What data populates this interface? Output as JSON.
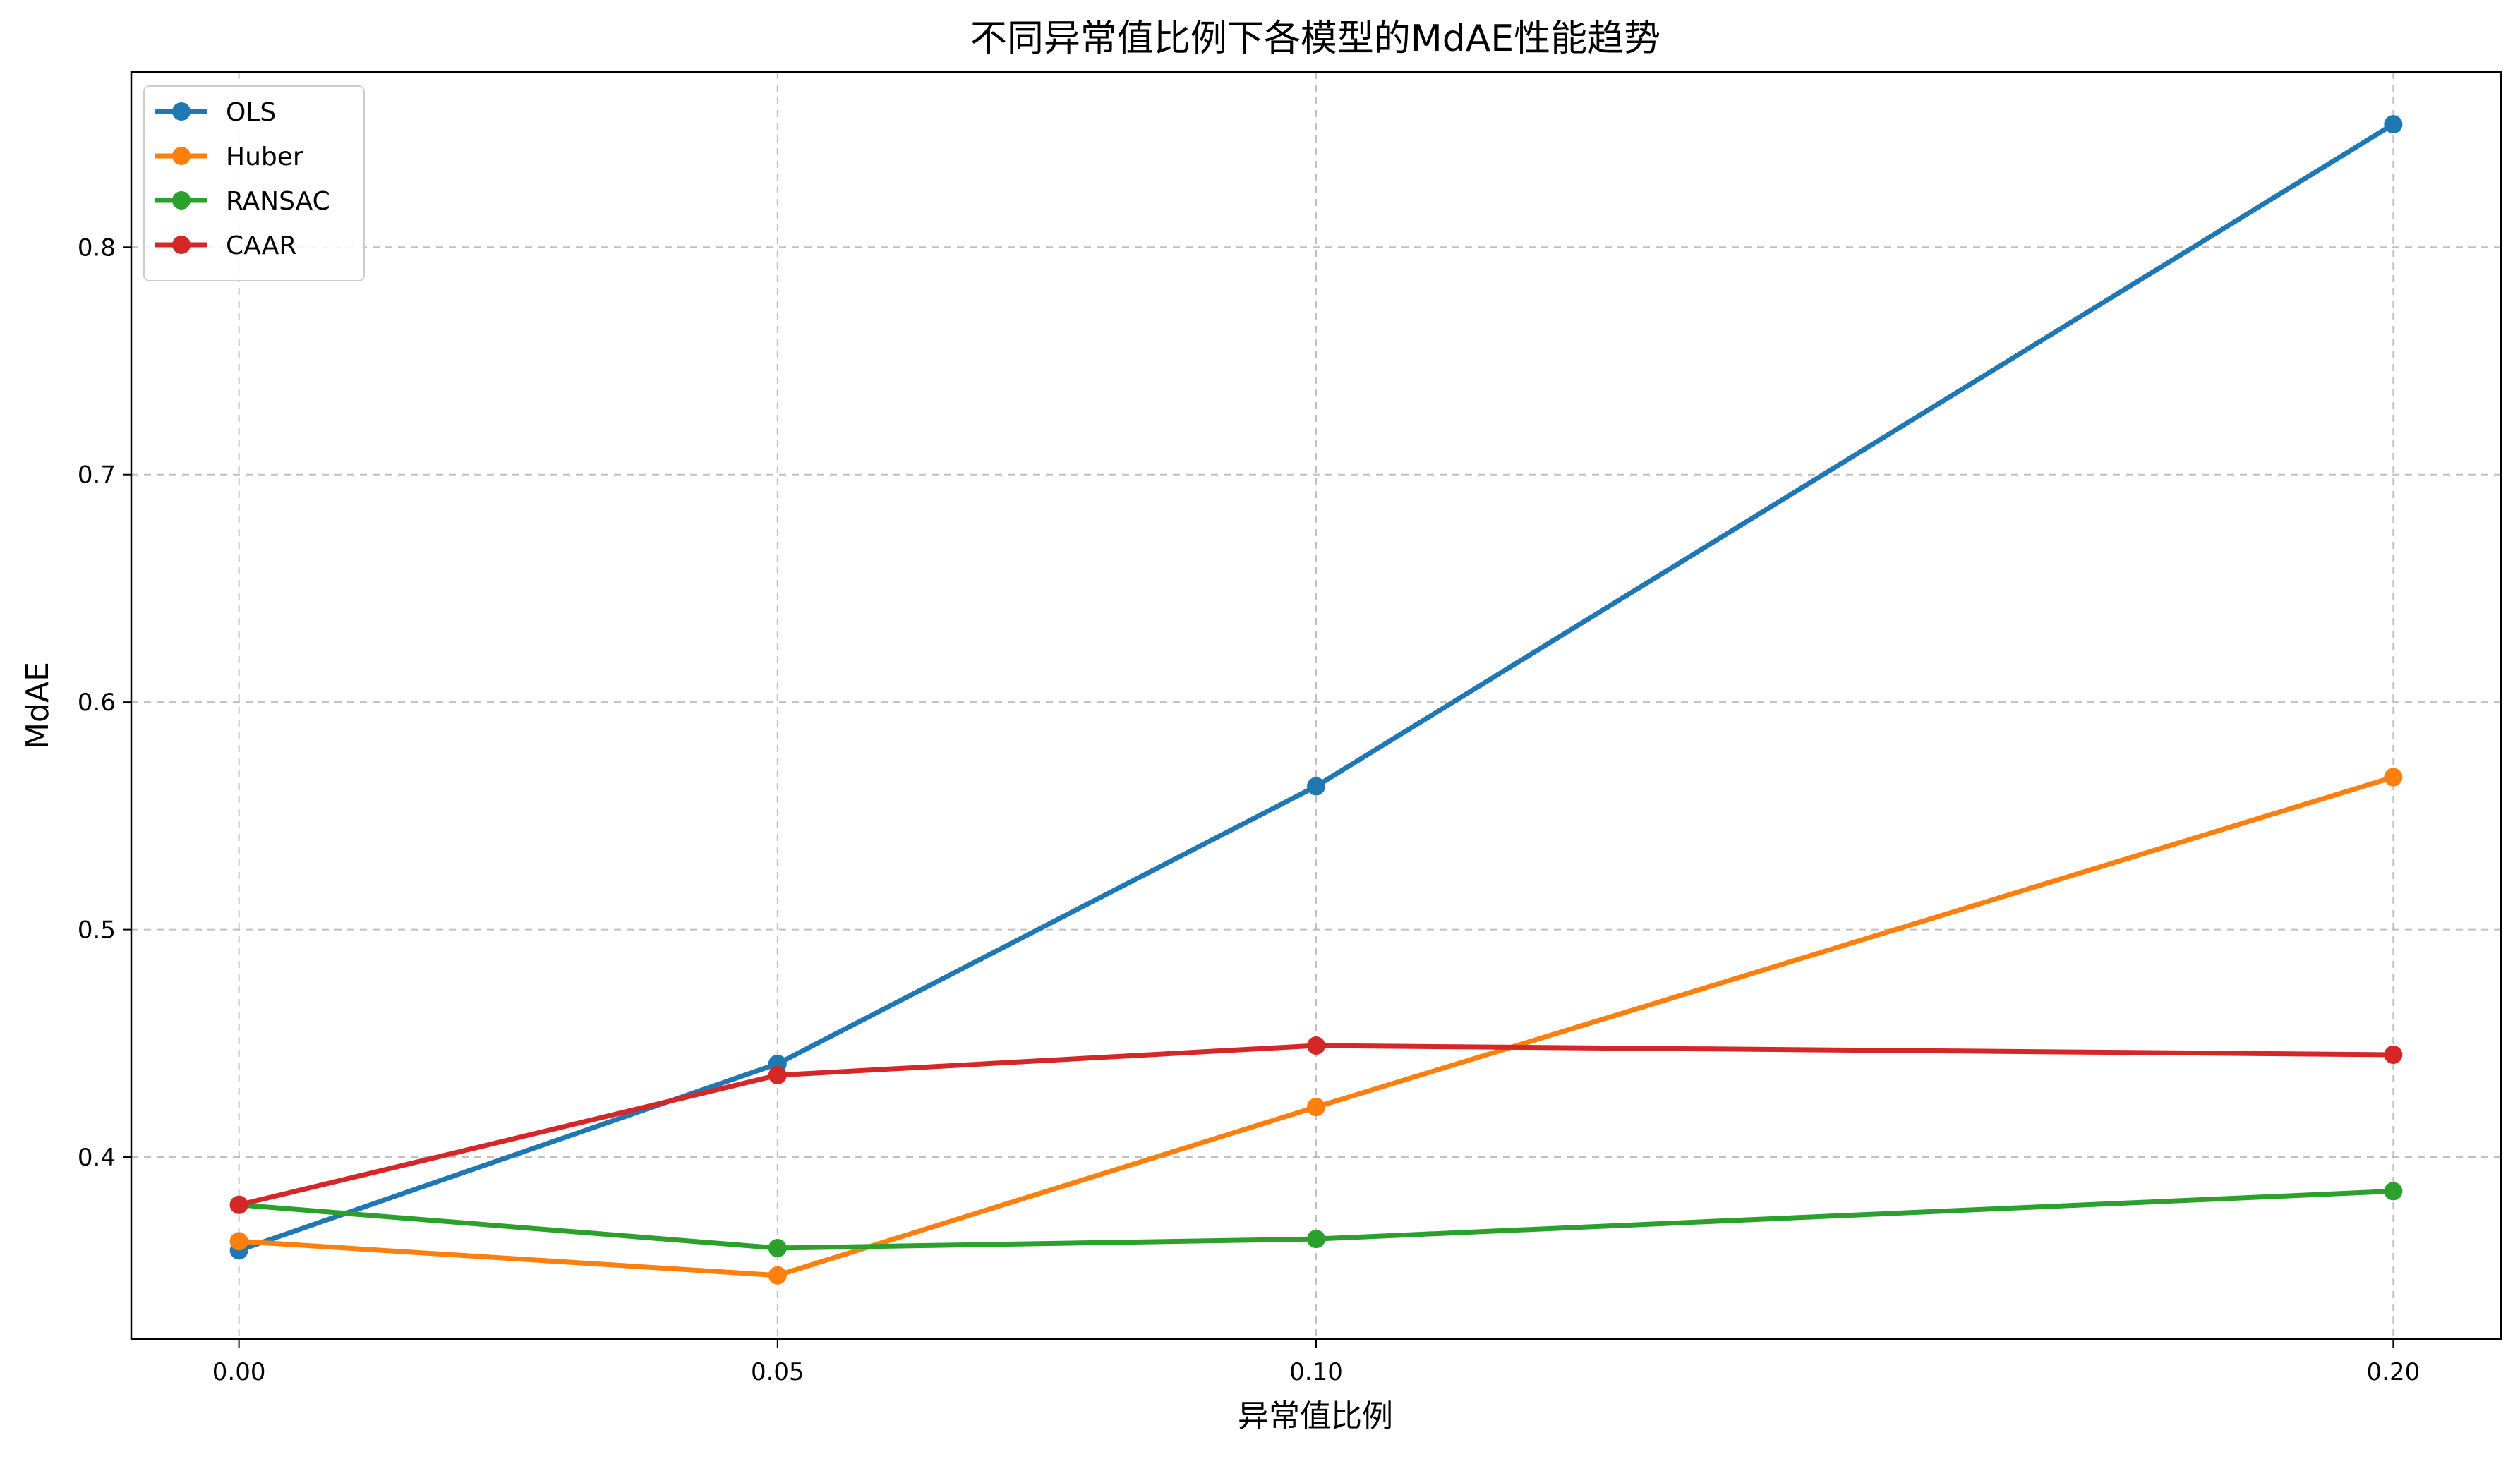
{
  "chart_data": {
    "type": "line",
    "title": "不同异常值比例下各模型的MdAE性能趋势",
    "xlabel": "异常值比例",
    "ylabel": "MdAE",
    "x": [
      0.0,
      0.05,
      0.1,
      0.2
    ],
    "x_tick_labels": [
      "0.00",
      "0.05",
      "0.10",
      "0.20"
    ],
    "y_ticks": [
      0.4,
      0.5,
      0.6,
      0.7,
      0.8
    ],
    "y_tick_labels": [
      "0.4",
      "0.5",
      "0.6",
      "0.7",
      "0.8"
    ],
    "xlim": [
      -0.01,
      0.21
    ],
    "ylim": [
      0.32,
      0.877
    ],
    "grid": true,
    "legend_position": "top-left",
    "series": [
      {
        "name": "OLS",
        "color": "#1f77b4",
        "values": [
          0.359,
          0.441,
          0.563,
          0.854
        ]
      },
      {
        "name": "Huber",
        "color": "#ff7f0e",
        "values": [
          0.363,
          0.348,
          0.422,
          0.567
        ]
      },
      {
        "name": "RANSAC",
        "color": "#2ca02c",
        "values": [
          0.379,
          0.36,
          0.364,
          0.385
        ]
      },
      {
        "name": "CAAR",
        "color": "#d62728",
        "values": [
          0.379,
          0.436,
          0.449,
          0.445
        ]
      }
    ]
  }
}
